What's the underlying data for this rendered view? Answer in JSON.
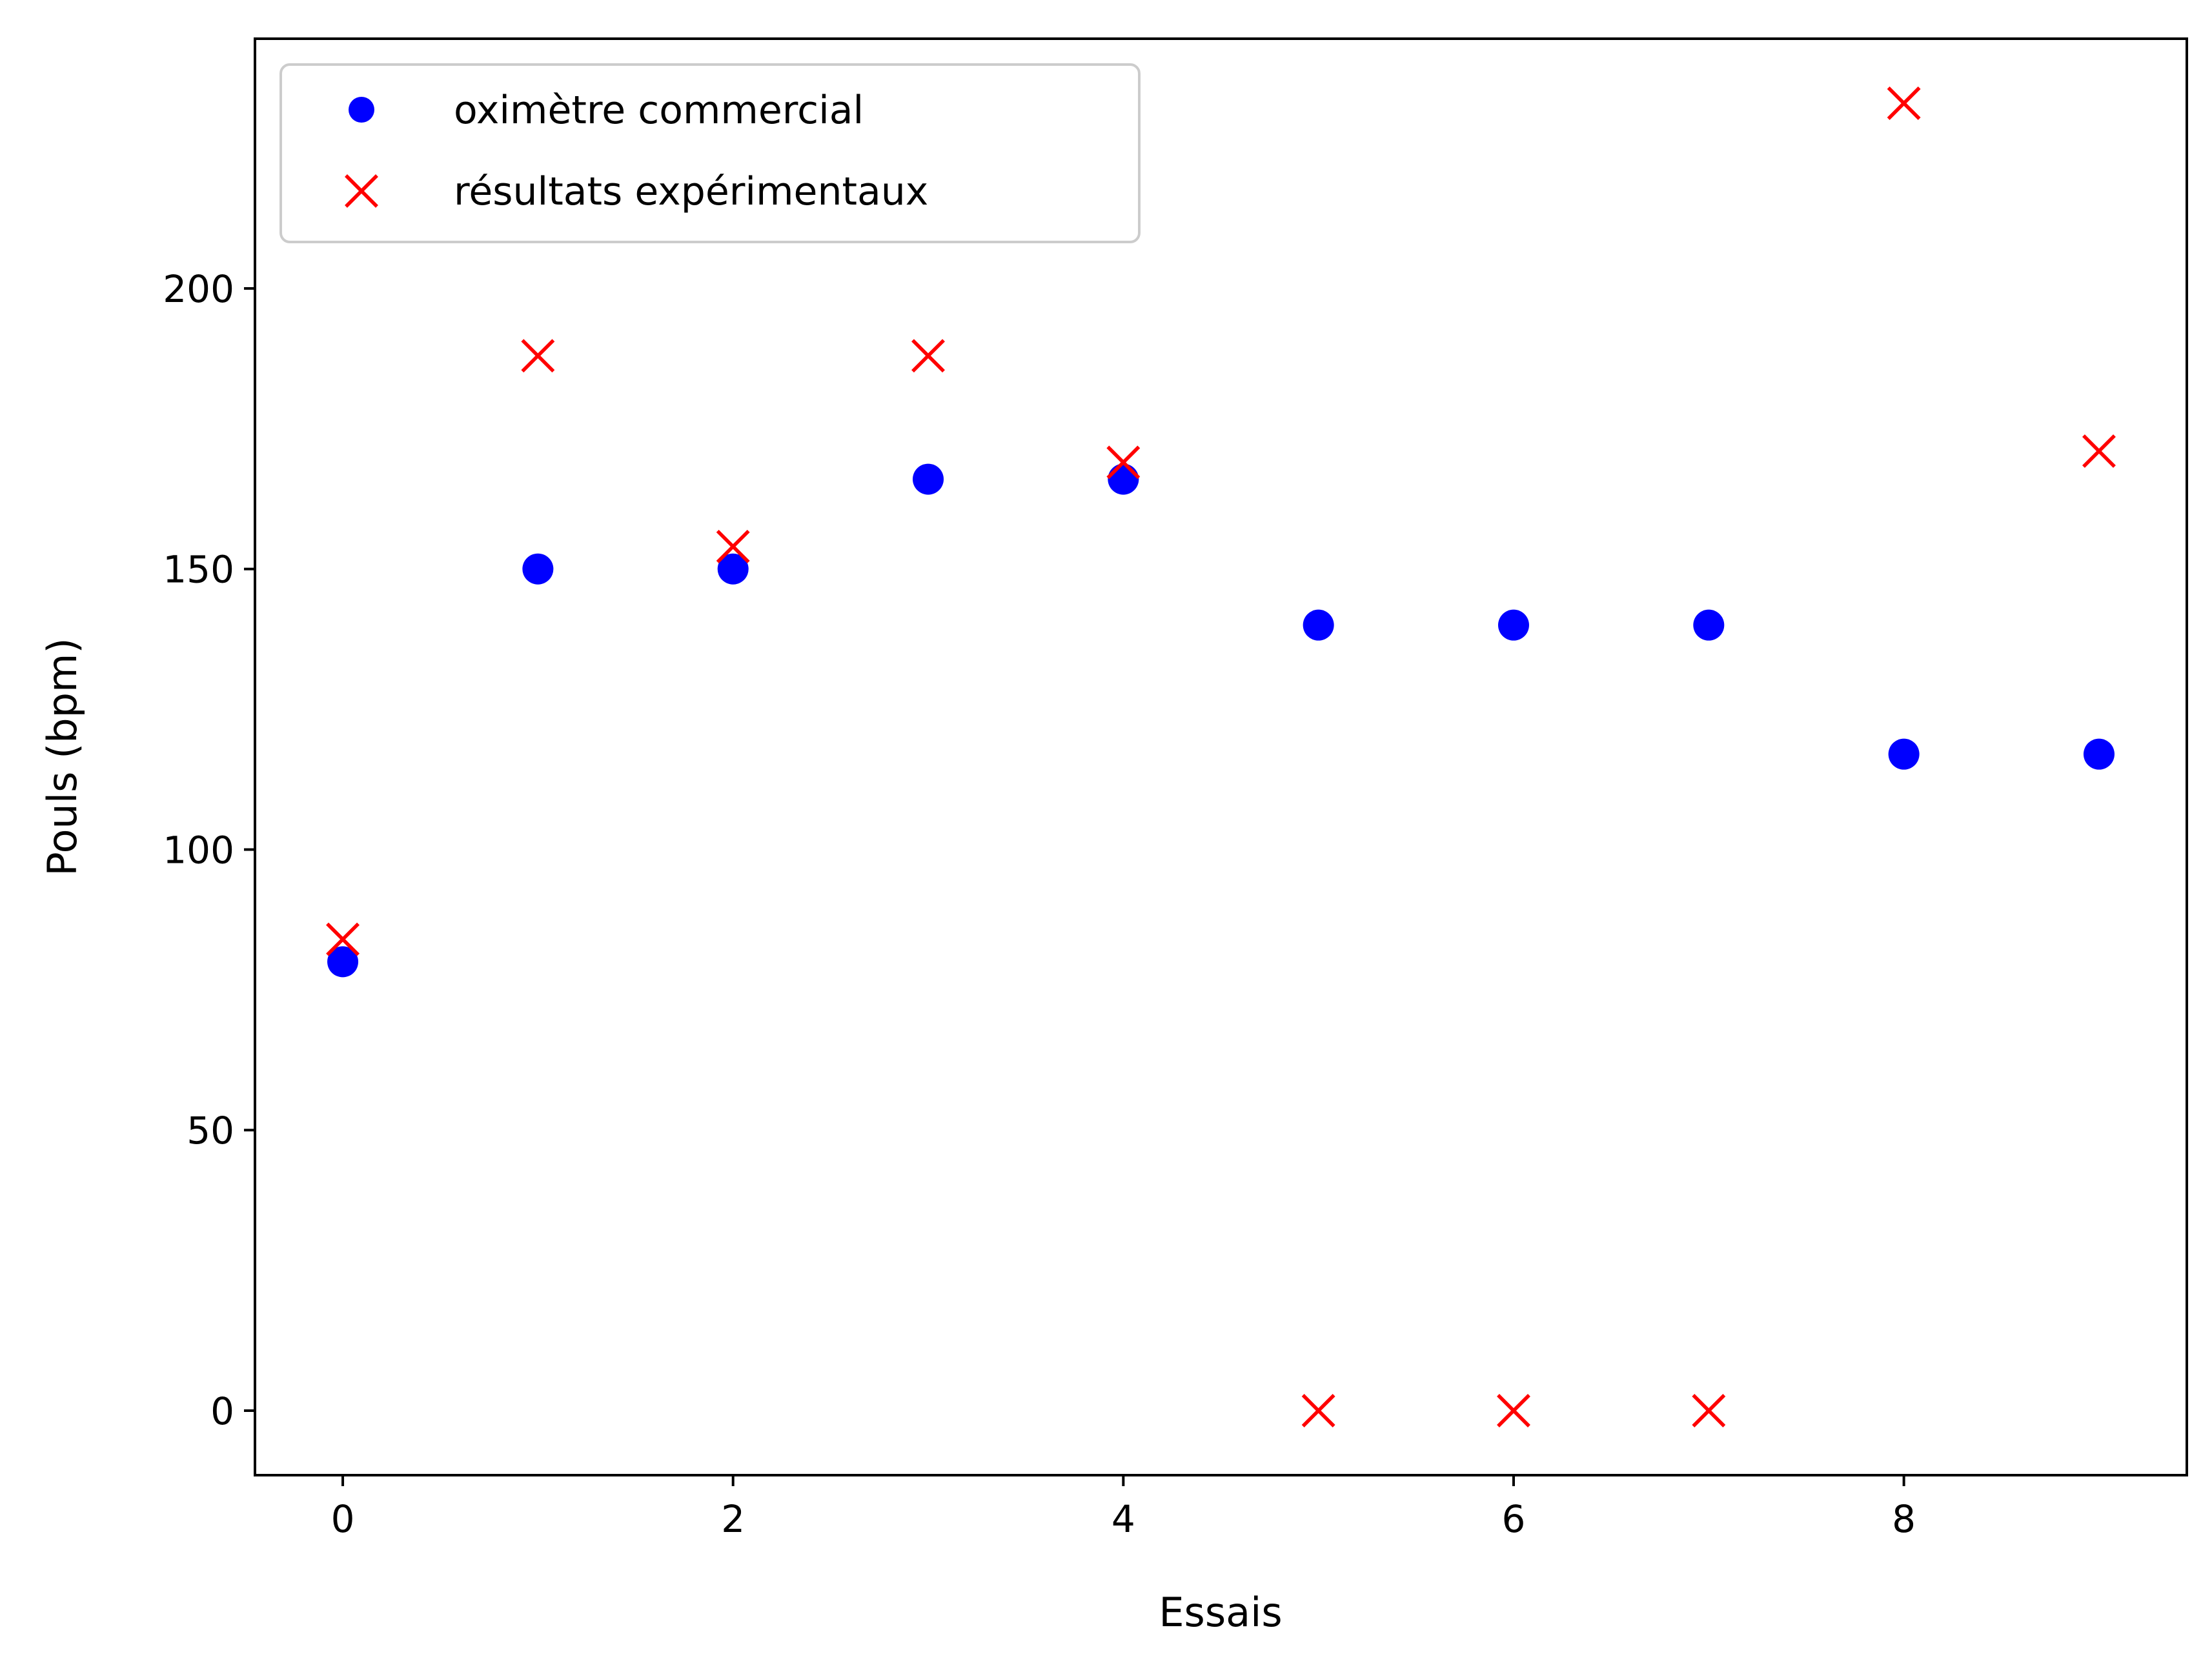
{
  "chart_data": {
    "type": "scatter",
    "xlabel": "Essais",
    "ylabel": "Pouls (bpm)",
    "xlim": [
      -0.45,
      9.45
    ],
    "ylim": [
      -11.5,
      244.5
    ],
    "xticks": [
      0,
      2,
      4,
      6,
      8
    ],
    "yticks": [
      0,
      50,
      100,
      150,
      200
    ],
    "grid": false,
    "legend_position": "top-left",
    "series": [
      {
        "name": "oximètre commercial",
        "marker": "circle",
        "color": "#0000ff",
        "x": [
          0,
          1,
          2,
          3,
          4,
          5,
          6,
          7,
          8,
          9
        ],
        "y": [
          80,
          150,
          150,
          166,
          166,
          140,
          140,
          140,
          117,
          117
        ]
      },
      {
        "name": "résultats expérimentaux",
        "marker": "x",
        "color": "#ff0000",
        "x": [
          0,
          1,
          2,
          3,
          4,
          5,
          6,
          7,
          8,
          9
        ],
        "y": [
          84,
          188,
          154,
          188,
          169,
          0,
          0,
          0,
          233,
          171
        ]
      }
    ]
  }
}
